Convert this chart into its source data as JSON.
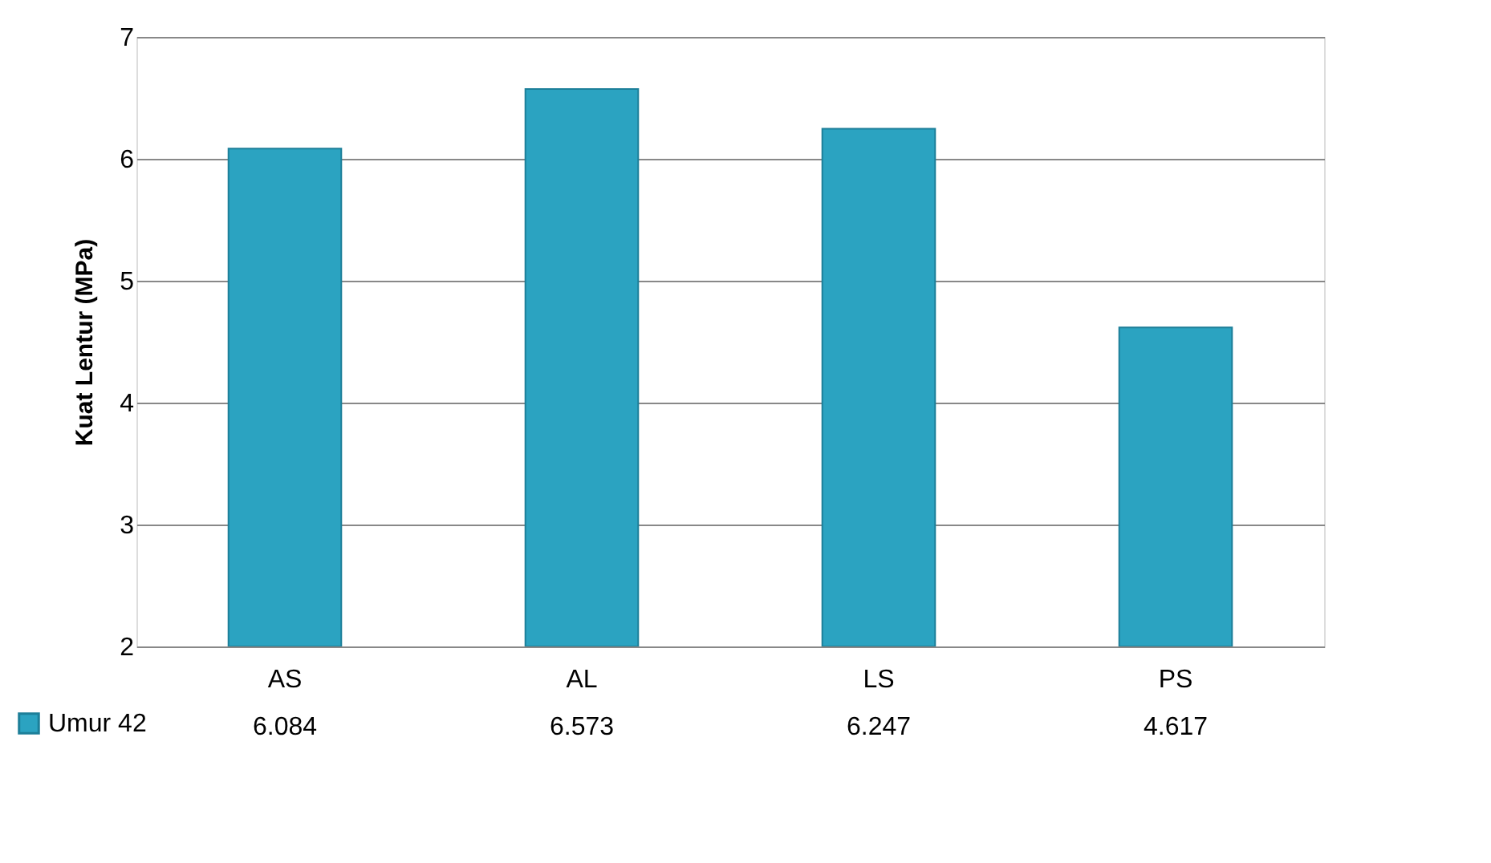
{
  "chart_data": {
    "type": "bar",
    "ylabel": "Kuat Lentur (MPa)",
    "categories": [
      "AS",
      "AL",
      "LS",
      "PS"
    ],
    "series": [
      {
        "name": "Umur 42",
        "color": "#2ba3c1",
        "values": [
          6.084,
          6.573,
          6.247,
          4.617
        ]
      }
    ],
    "ylim": [
      2,
      7
    ],
    "yticks": [
      2,
      3,
      4,
      5,
      6,
      7
    ],
    "grid": "y",
    "legend": "bottom left",
    "data_labels": true
  }
}
